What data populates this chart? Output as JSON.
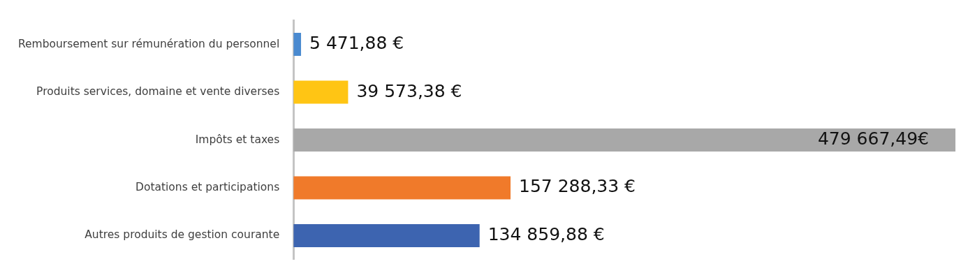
{
  "chart_data": {
    "type": "bar",
    "orientation": "horizontal",
    "categories": [
      "Remboursement sur rémunération du personnel",
      "Produits services, domaine et vente diverses",
      "Impôts et taxes",
      "Dotations et participations",
      "Autres produits de gestion courante"
    ],
    "values": [
      5471.88,
      39573.38,
      479667.49,
      157288.33,
      134859.88
    ],
    "colors": [
      "#4a8ad0",
      "#ffc514",
      "#a8a8a8",
      "#f07a2a",
      "#3d64b0"
    ],
    "value_labels": [
      "5 471,88 €",
      "39 573,38 €",
      "479 667,49€",
      "157 288,33 €",
      "134 859,88 €"
    ],
    "tick_labels": "y"
  }
}
